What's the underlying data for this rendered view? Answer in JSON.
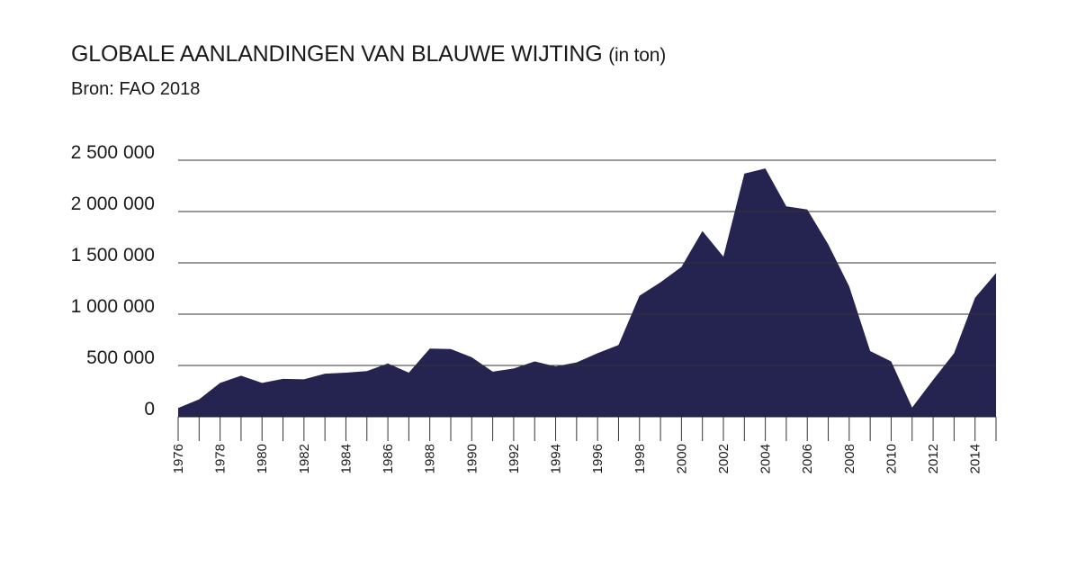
{
  "title": "GLOBALE AANLANDINGEN VAN BLAUWE WIJTING",
  "title_unit": "(in ton)",
  "subtitle": "Bron: FAO 2018",
  "colors": {
    "area": "#252350",
    "grid": "#333333",
    "text": "#1a1a1a"
  },
  "chart_data": {
    "type": "area",
    "title": "GLOBALE AANLANDINGEN VAN BLAUWE WIJTING (in ton)",
    "subtitle": "Bron: FAO 2018",
    "xlabel": "",
    "ylabel": "",
    "ylim": [
      0,
      2500000
    ],
    "yticks": [
      0,
      500000,
      1000000,
      1500000,
      2000000,
      2500000
    ],
    "ytick_labels": [
      "0",
      "500 000",
      "1 000 000",
      "1 500 000",
      "2 000 000",
      "2 500 000"
    ],
    "grid": true,
    "x": [
      1976,
      1977,
      1978,
      1979,
      1980,
      1981,
      1982,
      1983,
      1984,
      1985,
      1986,
      1987,
      1988,
      1989,
      1990,
      1991,
      1992,
      1993,
      1994,
      1995,
      1996,
      1997,
      1998,
      1999,
      2000,
      2001,
      2002,
      2003,
      2004,
      2005,
      2006,
      2007,
      2008,
      2009,
      2010,
      2011,
      2012,
      2013,
      2014,
      2015
    ],
    "xtick_labels": [
      "1976",
      "1978",
      "1980",
      "1982",
      "1984",
      "1986",
      "1988",
      "1990",
      "1992",
      "1994",
      "1996",
      "1998",
      "2000",
      "2002",
      "2004",
      "2006",
      "2008",
      "2010",
      "2012",
      "2014"
    ],
    "values": [
      85000,
      170000,
      330000,
      400000,
      330000,
      370000,
      365000,
      420000,
      430000,
      445000,
      520000,
      430000,
      665000,
      660000,
      580000,
      440000,
      470000,
      540000,
      490000,
      530000,
      620000,
      700000,
      1180000,
      1310000,
      1460000,
      1810000,
      1560000,
      2370000,
      2420000,
      2050000,
      2020000,
      1680000,
      1270000,
      640000,
      540000,
      90000,
      360000,
      620000,
      1160000,
      1400000
    ]
  }
}
